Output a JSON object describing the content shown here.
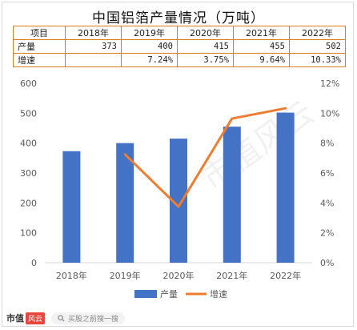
{
  "title": "中国铝箔产量情况（万吨）",
  "table": {
    "header": [
      "项目",
      "2018年",
      "2019年",
      "2020年",
      "2021年",
      "2022年"
    ],
    "rows": [
      {
        "label": "产量",
        "cells": [
          "373",
          "400",
          "415",
          "455",
          "502"
        ]
      },
      {
        "label": "增速",
        "cells": [
          "",
          "7.24%",
          "3.75%",
          "9.64%",
          "10.33%"
        ]
      }
    ]
  },
  "chart_data": {
    "type": "bar",
    "title": "中国铝箔产量情况（万吨）",
    "categories": [
      "2018年",
      "2019年",
      "2020年",
      "2021年",
      "2022年"
    ],
    "series": [
      {
        "name": "产量",
        "type": "bar",
        "axis": "left",
        "color": "#4472C4",
        "values": [
          373,
          400,
          415,
          455,
          502
        ]
      },
      {
        "name": "增速",
        "type": "line",
        "axis": "right",
        "color": "#ED7D31",
        "values": [
          null,
          7.24,
          3.75,
          9.64,
          10.33
        ]
      }
    ],
    "y_left": {
      "min": 0,
      "max": 600,
      "ticks": [
        "0",
        "100",
        "200",
        "300",
        "400",
        "500",
        "600"
      ]
    },
    "y_right": {
      "min": 0,
      "max": 12,
      "ticks": [
        "0%",
        "2%",
        "4%",
        "6%",
        "8%",
        "10%",
        "12%"
      ]
    },
    "grid": false,
    "legend_position": "bottom"
  },
  "footer": {
    "brand": "市值",
    "brand_seal": "风云",
    "search_placeholder": "买股之前搜一搜"
  }
}
